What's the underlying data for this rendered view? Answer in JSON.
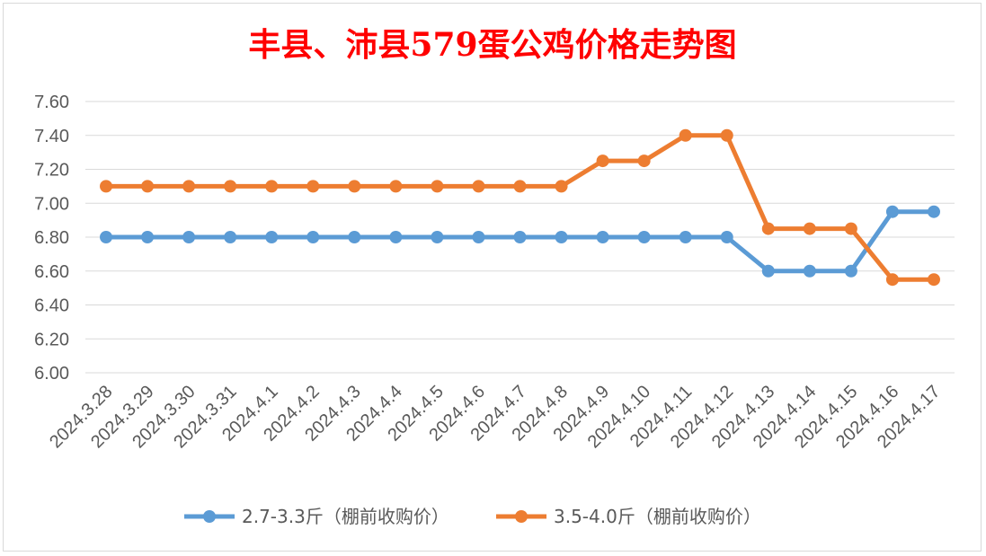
{
  "chart_data": {
    "type": "line",
    "title": "丰县、沛县579蛋公鸡价格走势图",
    "xlabel": "",
    "ylabel": "",
    "ylim": [
      6.0,
      7.6
    ],
    "ytick_step": 0.2,
    "ytick_labels": [
      "6.00",
      "6.20",
      "6.40",
      "6.60",
      "6.80",
      "7.00",
      "7.20",
      "7.40",
      "7.60"
    ],
    "grid": true,
    "legend": "bottom",
    "categories": [
      "2024.3.28",
      "2024.3.29",
      "2024.3.30",
      "2024.3.31",
      "2024.4.1",
      "2024.4.2",
      "2024.4.3",
      "2024.4.4",
      "2024.4.5",
      "2024.4.6",
      "2024.4.7",
      "2024.4.8",
      "2024.4.9",
      "2024.4.10",
      "2024.4.11",
      "2024.4.12",
      "2024.4.13",
      "2024.4.14",
      "2024.4.15",
      "2024.4.16",
      "2024.4.17"
    ],
    "series": [
      {
        "name": "2.7-3.3斤（棚前收购价）",
        "color": "#5b9bd5",
        "values": [
          6.8,
          6.8,
          6.8,
          6.8,
          6.8,
          6.8,
          6.8,
          6.8,
          6.8,
          6.8,
          6.8,
          6.8,
          6.8,
          6.8,
          6.8,
          6.8,
          6.6,
          6.6,
          6.6,
          6.95,
          6.95
        ]
      },
      {
        "name": "3.5-4.0斤（棚前收购价）",
        "color": "#ed7d31",
        "values": [
          7.1,
          7.1,
          7.1,
          7.1,
          7.1,
          7.1,
          7.1,
          7.1,
          7.1,
          7.1,
          7.1,
          7.1,
          7.25,
          7.25,
          7.4,
          7.4,
          6.85,
          6.85,
          6.85,
          6.55,
          6.55
        ]
      }
    ],
    "title_color": "#ff0000"
  }
}
